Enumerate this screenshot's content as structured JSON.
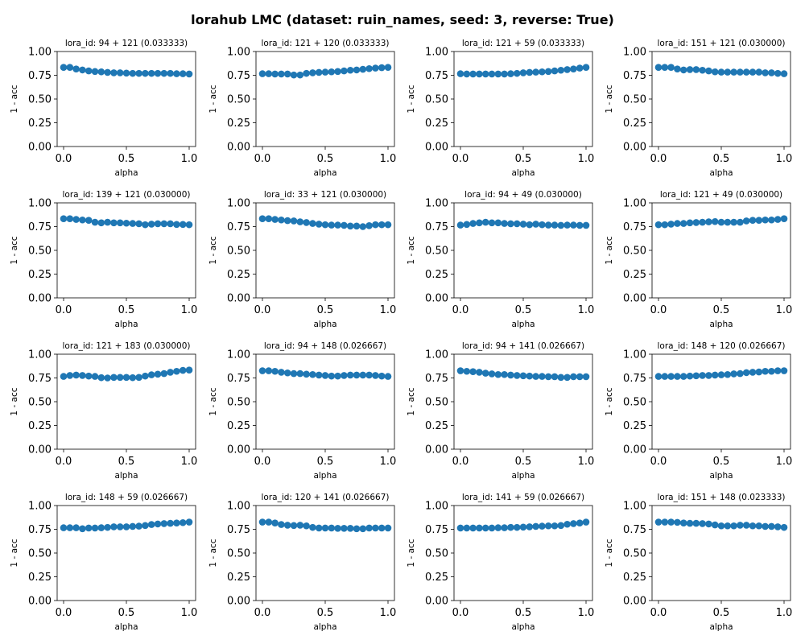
{
  "figure": {
    "suptitle": "lorahub LMC (dataset: ruin_names, seed: 3, reverse: True)",
    "marker_color": "#1f77b4",
    "axis_color": "#000000"
  },
  "chart_data": [
    {
      "type": "scatter",
      "title": "lora_id: 94 + 121 (0.033333)",
      "xlabel": "alpha",
      "ylabel": "1 - acc",
      "xlim": [
        0,
        1
      ],
      "ylim": [
        0,
        1
      ],
      "xticks": [
        "0.0",
        "0.5",
        "1.0"
      ],
      "yticks": [
        "0.00",
        "0.25",
        "0.50",
        "0.75",
        "1.00"
      ],
      "x": [
        0,
        0.05,
        0.1,
        0.15,
        0.2,
        0.25,
        0.3,
        0.35,
        0.4,
        0.45,
        0.5,
        0.55,
        0.6,
        0.65,
        0.7,
        0.75,
        0.8,
        0.85,
        0.9,
        0.95,
        1.0
      ],
      "y": [
        0.833,
        0.833,
        0.816,
        0.806,
        0.796,
        0.79,
        0.786,
        0.78,
        0.776,
        0.776,
        0.773,
        0.77,
        0.77,
        0.77,
        0.77,
        0.77,
        0.77,
        0.77,
        0.766,
        0.766,
        0.763
      ]
    },
    {
      "type": "scatter",
      "title": "lora_id: 121 + 120 (0.033333)",
      "xlabel": "alpha",
      "ylabel": "1 - acc",
      "xlim": [
        0,
        1
      ],
      "ylim": [
        0,
        1
      ],
      "xticks": [
        "0.0",
        "0.5",
        "1.0"
      ],
      "yticks": [
        "0.00",
        "0.25",
        "0.50",
        "0.75",
        "1.00"
      ],
      "x": [
        0,
        0.05,
        0.1,
        0.15,
        0.2,
        0.25,
        0.3,
        0.35,
        0.4,
        0.45,
        0.5,
        0.55,
        0.6,
        0.65,
        0.7,
        0.75,
        0.8,
        0.85,
        0.9,
        0.95,
        1.0
      ],
      "y": [
        0.766,
        0.766,
        0.763,
        0.763,
        0.763,
        0.753,
        0.753,
        0.77,
        0.776,
        0.78,
        0.783,
        0.786,
        0.79,
        0.796,
        0.803,
        0.806,
        0.813,
        0.82,
        0.826,
        0.83,
        0.833
      ]
    },
    {
      "type": "scatter",
      "title": "lora_id: 121 + 59 (0.033333)",
      "xlabel": "alpha",
      "ylabel": "1 - acc",
      "xlim": [
        0,
        1
      ],
      "ylim": [
        0,
        1
      ],
      "xticks": [
        "0.0",
        "0.5",
        "1.0"
      ],
      "yticks": [
        "0.00",
        "0.25",
        "0.50",
        "0.75",
        "1.00"
      ],
      "x": [
        0,
        0.05,
        0.1,
        0.15,
        0.2,
        0.25,
        0.3,
        0.35,
        0.4,
        0.45,
        0.5,
        0.55,
        0.6,
        0.65,
        0.7,
        0.75,
        0.8,
        0.85,
        0.9,
        0.95,
        1.0
      ],
      "y": [
        0.766,
        0.763,
        0.763,
        0.763,
        0.763,
        0.763,
        0.763,
        0.763,
        0.766,
        0.77,
        0.776,
        0.78,
        0.783,
        0.786,
        0.79,
        0.796,
        0.803,
        0.81,
        0.816,
        0.826,
        0.833
      ]
    },
    {
      "type": "scatter",
      "title": "lora_id: 151 + 121 (0.030000)",
      "xlabel": "alpha",
      "ylabel": "1 - acc",
      "xlim": [
        0,
        1
      ],
      "ylim": [
        0,
        1
      ],
      "xticks": [
        "0.0",
        "0.5",
        "1.0"
      ],
      "yticks": [
        "0.00",
        "0.25",
        "0.50",
        "0.75",
        "1.00"
      ],
      "x": [
        0,
        0.05,
        0.1,
        0.15,
        0.2,
        0.25,
        0.3,
        0.35,
        0.4,
        0.45,
        0.5,
        0.55,
        0.6,
        0.65,
        0.7,
        0.75,
        0.8,
        0.85,
        0.9,
        0.95,
        1.0
      ],
      "y": [
        0.833,
        0.833,
        0.833,
        0.816,
        0.806,
        0.81,
        0.81,
        0.803,
        0.796,
        0.786,
        0.783,
        0.783,
        0.783,
        0.783,
        0.783,
        0.783,
        0.783,
        0.776,
        0.776,
        0.77,
        0.766
      ]
    },
    {
      "type": "scatter",
      "title": "lora_id: 139 + 121 (0.030000)",
      "xlabel": "alpha",
      "ylabel": "1 - acc",
      "xlim": [
        0,
        1
      ],
      "ylim": [
        0,
        1
      ],
      "xticks": [
        "0.0",
        "0.5",
        "1.0"
      ],
      "yticks": [
        "0.00",
        "0.25",
        "0.50",
        "0.75",
        "1.00"
      ],
      "x": [
        0,
        0.05,
        0.1,
        0.15,
        0.2,
        0.25,
        0.3,
        0.35,
        0.4,
        0.45,
        0.5,
        0.55,
        0.6,
        0.65,
        0.7,
        0.75,
        0.8,
        0.85,
        0.9,
        0.95,
        1.0
      ],
      "y": [
        0.833,
        0.833,
        0.826,
        0.82,
        0.816,
        0.796,
        0.79,
        0.796,
        0.79,
        0.79,
        0.786,
        0.783,
        0.78,
        0.77,
        0.776,
        0.78,
        0.78,
        0.78,
        0.773,
        0.773,
        0.77
      ]
    },
    {
      "type": "scatter",
      "title": "lora_id: 33 + 121 (0.030000)",
      "xlabel": "alpha",
      "ylabel": "1 - acc",
      "xlim": [
        0,
        1
      ],
      "ylim": [
        0,
        1
      ],
      "xticks": [
        "0.0",
        "0.5",
        "1.0"
      ],
      "yticks": [
        "0.00",
        "0.25",
        "0.50",
        "0.75",
        "1.00"
      ],
      "x": [
        0,
        0.05,
        0.1,
        0.15,
        0.2,
        0.25,
        0.3,
        0.35,
        0.4,
        0.45,
        0.5,
        0.55,
        0.6,
        0.65,
        0.7,
        0.75,
        0.8,
        0.85,
        0.9,
        0.95,
        1.0
      ],
      "y": [
        0.833,
        0.833,
        0.826,
        0.82,
        0.813,
        0.81,
        0.8,
        0.793,
        0.783,
        0.776,
        0.77,
        0.766,
        0.766,
        0.763,
        0.756,
        0.756,
        0.75,
        0.76,
        0.77,
        0.77,
        0.77
      ]
    },
    {
      "type": "scatter",
      "title": "lora_id: 94 + 49 (0.030000)",
      "xlabel": "alpha",
      "ylabel": "1 - acc",
      "xlim": [
        0,
        1
      ],
      "ylim": [
        0,
        1
      ],
      "xticks": [
        "0.0",
        "0.5",
        "1.0"
      ],
      "yticks": [
        "0.00",
        "0.25",
        "0.50",
        "0.75",
        "1.00"
      ],
      "x": [
        0,
        0.05,
        0.1,
        0.15,
        0.2,
        0.25,
        0.3,
        0.35,
        0.4,
        0.45,
        0.5,
        0.55,
        0.6,
        0.65,
        0.7,
        0.75,
        0.8,
        0.85,
        0.9,
        0.95,
        1.0
      ],
      "y": [
        0.766,
        0.773,
        0.783,
        0.79,
        0.796,
        0.79,
        0.79,
        0.783,
        0.78,
        0.78,
        0.776,
        0.77,
        0.776,
        0.77,
        0.766,
        0.766,
        0.763,
        0.766,
        0.766,
        0.763,
        0.763
      ]
    },
    {
      "type": "scatter",
      "title": "lora_id: 121 + 49 (0.030000)",
      "xlabel": "alpha",
      "ylabel": "1 - acc",
      "xlim": [
        0,
        1
      ],
      "ylim": [
        0,
        1
      ],
      "xticks": [
        "0.0",
        "0.5",
        "1.0"
      ],
      "yticks": [
        "0.00",
        "0.25",
        "0.50",
        "0.75",
        "1.00"
      ],
      "x": [
        0,
        0.05,
        0.1,
        0.15,
        0.2,
        0.25,
        0.3,
        0.35,
        0.4,
        0.45,
        0.5,
        0.55,
        0.6,
        0.65,
        0.7,
        0.75,
        0.8,
        0.85,
        0.9,
        0.95,
        1.0
      ],
      "y": [
        0.77,
        0.77,
        0.776,
        0.783,
        0.783,
        0.79,
        0.793,
        0.796,
        0.8,
        0.803,
        0.796,
        0.796,
        0.796,
        0.796,
        0.81,
        0.816,
        0.816,
        0.82,
        0.82,
        0.826,
        0.833
      ]
    },
    {
      "type": "scatter",
      "title": "lora_id: 121 + 183 (0.030000)",
      "xlabel": "alpha",
      "ylabel": "1 - acc",
      "xlim": [
        0,
        1
      ],
      "ylim": [
        0,
        1
      ],
      "xticks": [
        "0.0",
        "0.5",
        "1.0"
      ],
      "yticks": [
        "0.00",
        "0.25",
        "0.50",
        "0.75",
        "1.00"
      ],
      "x": [
        0,
        0.05,
        0.1,
        0.15,
        0.2,
        0.25,
        0.3,
        0.35,
        0.4,
        0.45,
        0.5,
        0.55,
        0.6,
        0.65,
        0.7,
        0.75,
        0.8,
        0.85,
        0.9,
        0.95,
        1.0
      ],
      "y": [
        0.766,
        0.776,
        0.78,
        0.776,
        0.77,
        0.766,
        0.753,
        0.75,
        0.756,
        0.756,
        0.756,
        0.753,
        0.756,
        0.77,
        0.783,
        0.79,
        0.796,
        0.81,
        0.82,
        0.83,
        0.833
      ]
    },
    {
      "type": "scatter",
      "title": "lora_id: 94 + 148 (0.026667)",
      "xlabel": "alpha",
      "ylabel": "1 - acc",
      "xlim": [
        0,
        1
      ],
      "ylim": [
        0,
        1
      ],
      "xticks": [
        "0.0",
        "0.5",
        "1.0"
      ],
      "yticks": [
        "0.00",
        "0.25",
        "0.50",
        "0.75",
        "1.00"
      ],
      "x": [
        0,
        0.05,
        0.1,
        0.15,
        0.2,
        0.25,
        0.3,
        0.35,
        0.4,
        0.45,
        0.5,
        0.55,
        0.6,
        0.65,
        0.7,
        0.75,
        0.8,
        0.85,
        0.9,
        0.95,
        1.0
      ],
      "y": [
        0.826,
        0.826,
        0.82,
        0.81,
        0.803,
        0.796,
        0.796,
        0.79,
        0.786,
        0.78,
        0.776,
        0.77,
        0.77,
        0.776,
        0.78,
        0.78,
        0.78,
        0.78,
        0.776,
        0.77,
        0.766
      ]
    },
    {
      "type": "scatter",
      "title": "lora_id: 94 + 141 (0.026667)",
      "xlabel": "alpha",
      "ylabel": "1 - acc",
      "xlim": [
        0,
        1
      ],
      "ylim": [
        0,
        1
      ],
      "xticks": [
        "0.0",
        "0.5",
        "1.0"
      ],
      "yticks": [
        "0.00",
        "0.25",
        "0.50",
        "0.75",
        "1.00"
      ],
      "x": [
        0,
        0.05,
        0.1,
        0.15,
        0.2,
        0.25,
        0.3,
        0.35,
        0.4,
        0.45,
        0.5,
        0.55,
        0.6,
        0.65,
        0.7,
        0.75,
        0.8,
        0.85,
        0.9,
        0.95,
        1.0
      ],
      "y": [
        0.826,
        0.82,
        0.816,
        0.81,
        0.8,
        0.793,
        0.786,
        0.786,
        0.78,
        0.776,
        0.773,
        0.77,
        0.766,
        0.766,
        0.763,
        0.763,
        0.756,
        0.756,
        0.763,
        0.763,
        0.763
      ]
    },
    {
      "type": "scatter",
      "title": "lora_id: 148 + 120 (0.026667)",
      "xlabel": "alpha",
      "ylabel": "1 - acc",
      "xlim": [
        0,
        1
      ],
      "ylim": [
        0,
        1
      ],
      "xticks": [
        "0.0",
        "0.5",
        "1.0"
      ],
      "yticks": [
        "0.00",
        "0.25",
        "0.50",
        "0.75",
        "1.00"
      ],
      "x": [
        0,
        0.05,
        0.1,
        0.15,
        0.2,
        0.25,
        0.3,
        0.35,
        0.4,
        0.45,
        0.5,
        0.55,
        0.6,
        0.65,
        0.7,
        0.75,
        0.8,
        0.85,
        0.9,
        0.95,
        1.0
      ],
      "y": [
        0.766,
        0.766,
        0.766,
        0.766,
        0.766,
        0.77,
        0.773,
        0.776,
        0.776,
        0.78,
        0.783,
        0.786,
        0.793,
        0.796,
        0.806,
        0.81,
        0.813,
        0.82,
        0.82,
        0.826,
        0.826
      ]
    },
    {
      "type": "scatter",
      "title": "lora_id: 148 + 59 (0.026667)",
      "xlabel": "alpha",
      "ylabel": "1 - acc",
      "xlim": [
        0,
        1
      ],
      "ylim": [
        0,
        1
      ],
      "xticks": [
        "0.0",
        "0.5",
        "1.0"
      ],
      "yticks": [
        "0.00",
        "0.25",
        "0.50",
        "0.75",
        "1.00"
      ],
      "x": [
        0,
        0.05,
        0.1,
        0.15,
        0.2,
        0.25,
        0.3,
        0.35,
        0.4,
        0.45,
        0.5,
        0.55,
        0.6,
        0.65,
        0.7,
        0.75,
        0.8,
        0.85,
        0.9,
        0.95,
        1.0
      ],
      "y": [
        0.766,
        0.766,
        0.766,
        0.756,
        0.763,
        0.763,
        0.766,
        0.77,
        0.776,
        0.776,
        0.776,
        0.78,
        0.783,
        0.79,
        0.8,
        0.806,
        0.81,
        0.813,
        0.816,
        0.82,
        0.826
      ]
    },
    {
      "type": "scatter",
      "title": "lora_id: 120 + 141 (0.026667)",
      "xlabel": "alpha",
      "ylabel": "1 - acc",
      "xlim": [
        0,
        1
      ],
      "ylim": [
        0,
        1
      ],
      "xticks": [
        "0.0",
        "0.5",
        "1.0"
      ],
      "yticks": [
        "0.00",
        "0.25",
        "0.50",
        "0.75",
        "1.00"
      ],
      "x": [
        0,
        0.05,
        0.1,
        0.15,
        0.2,
        0.25,
        0.3,
        0.35,
        0.4,
        0.45,
        0.5,
        0.55,
        0.6,
        0.65,
        0.7,
        0.75,
        0.8,
        0.85,
        0.9,
        0.95,
        1.0
      ],
      "y": [
        0.826,
        0.826,
        0.816,
        0.8,
        0.793,
        0.79,
        0.793,
        0.786,
        0.77,
        0.763,
        0.763,
        0.763,
        0.76,
        0.76,
        0.76,
        0.756,
        0.756,
        0.763,
        0.763,
        0.763,
        0.763
      ]
    },
    {
      "type": "scatter",
      "title": "lora_id: 141 + 59 (0.026667)",
      "xlabel": "alpha",
      "ylabel": "1 - acc",
      "xlim": [
        0,
        1
      ],
      "ylim": [
        0,
        1
      ],
      "xticks": [
        "0.0",
        "0.5",
        "1.0"
      ],
      "yticks": [
        "0.00",
        "0.25",
        "0.50",
        "0.75",
        "1.00"
      ],
      "x": [
        0,
        0.05,
        0.1,
        0.15,
        0.2,
        0.25,
        0.3,
        0.35,
        0.4,
        0.45,
        0.5,
        0.55,
        0.6,
        0.65,
        0.7,
        0.75,
        0.8,
        0.85,
        0.9,
        0.95,
        1.0
      ],
      "y": [
        0.763,
        0.763,
        0.763,
        0.763,
        0.763,
        0.763,
        0.766,
        0.766,
        0.77,
        0.77,
        0.773,
        0.776,
        0.78,
        0.783,
        0.786,
        0.786,
        0.79,
        0.803,
        0.81,
        0.816,
        0.826
      ]
    },
    {
      "type": "scatter",
      "title": "lora_id: 151 + 148 (0.023333)",
      "xlabel": "alpha",
      "ylabel": "1 - acc",
      "xlim": [
        0,
        1
      ],
      "ylim": [
        0,
        1
      ],
      "xticks": [
        "0.0",
        "0.5",
        "1.0"
      ],
      "yticks": [
        "0.00",
        "0.25",
        "0.50",
        "0.75",
        "1.00"
      ],
      "x": [
        0,
        0.05,
        0.1,
        0.15,
        0.2,
        0.25,
        0.3,
        0.35,
        0.4,
        0.45,
        0.5,
        0.55,
        0.6,
        0.65,
        0.7,
        0.75,
        0.8,
        0.85,
        0.9,
        0.95,
        1.0
      ],
      "y": [
        0.826,
        0.826,
        0.826,
        0.823,
        0.816,
        0.813,
        0.813,
        0.81,
        0.806,
        0.796,
        0.786,
        0.786,
        0.786,
        0.793,
        0.793,
        0.786,
        0.786,
        0.78,
        0.78,
        0.776,
        0.77
      ]
    }
  ]
}
